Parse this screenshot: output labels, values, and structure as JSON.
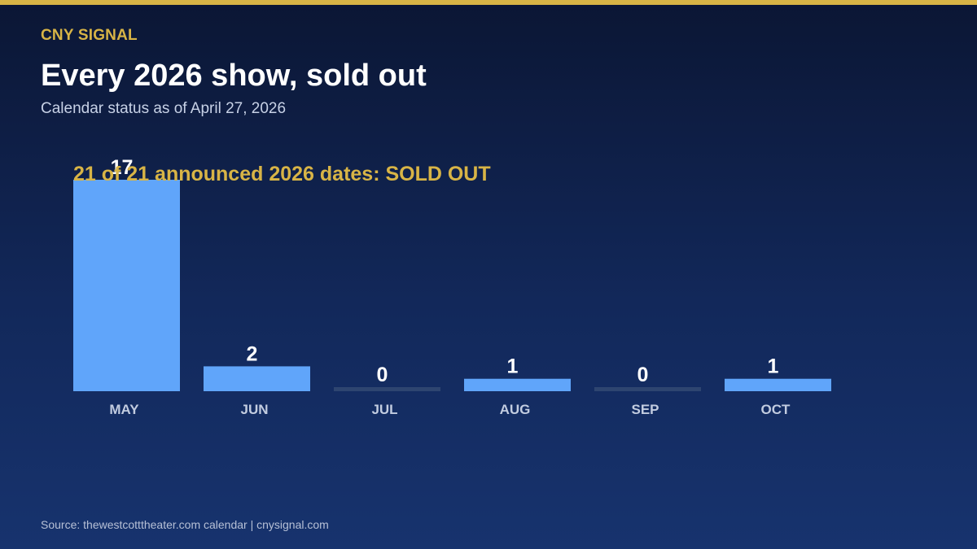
{
  "colors": {
    "accent": "#d8b446",
    "bar": "#60a5fa",
    "zero_bar": "#2e4570",
    "label": "#ffffff",
    "tick": "#c2cce0"
  },
  "header": {
    "brand": "CNY SIGNAL",
    "title": "Every 2026 show, sold out",
    "subtitle": "Calendar status as of April 27, 2026"
  },
  "chart_data": {
    "type": "bar",
    "categories": [
      "MAY",
      "JUN",
      "JUL",
      "AUG",
      "SEP",
      "OCT"
    ],
    "values": [
      17,
      2,
      0,
      1,
      0,
      1
    ],
    "annotation": "21 of 21 announced 2026 dates: SOLD OUT",
    "title": "Every 2026 show, sold out",
    "subtitle": "Calendar status as of April 27, 2026",
    "xlabel": "",
    "ylabel": "",
    "ylim": [
      0,
      17
    ],
    "grid": false,
    "legend": "none"
  },
  "footer": {
    "source": "Source: thewestcotttheater.com calendar | cnysignal.com"
  }
}
